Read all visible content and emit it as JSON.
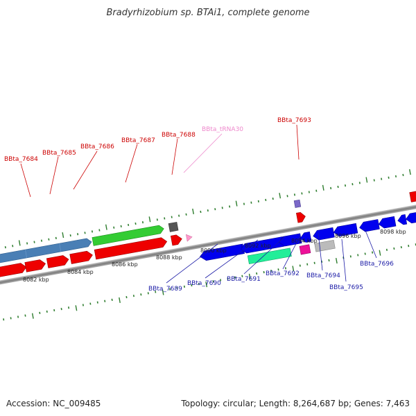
{
  "title": "Bradyrhizobium sp. BTAi1, complete genome",
  "footer": {
    "accession": "Accession: NC_009485",
    "summary": "Topology: circular; Length: 8,264,687 bp; Genes: 7,463"
  },
  "colors": {
    "backbone": "#8a8a8a",
    "tick": "#2e7d2e",
    "forward_label": "#cc0000",
    "reverse_label": "#1a1aa6",
    "trna_label": "#ee88cc"
  },
  "scale_labels": [
    {
      "text": "8082 kbp",
      "kbp": 8082
    },
    {
      "text": "8084 kbp",
      "kbp": 8084
    },
    {
      "text": "8086 kbp",
      "kbp": 8086
    },
    {
      "text": "8088 kbp",
      "kbp": 8088
    },
    {
      "text": "8090 kbp",
      "kbp": 8090
    },
    {
      "text": "8092 kbp",
      "kbp": 8092
    },
    {
      "text": "8094 kbp",
      "kbp": 8094
    },
    {
      "text": "8096 kbp",
      "kbp": 8096
    },
    {
      "text": "8098 kbp",
      "kbp": 8098
    }
  ],
  "gene_labels": [
    {
      "id": "BBta_7684",
      "strand": "forward"
    },
    {
      "id": "BBta_7685",
      "strand": "forward"
    },
    {
      "id": "BBta_7686",
      "strand": "forward"
    },
    {
      "id": "BBta_7687",
      "strand": "forward"
    },
    {
      "id": "BBta_7688",
      "strand": "forward"
    },
    {
      "id": "BBta_tRNA30",
      "strand": "trna"
    },
    {
      "id": "BBta_7693",
      "strand": "forward"
    },
    {
      "id": "BBta_7689",
      "strand": "reverse"
    },
    {
      "id": "BBta_7690",
      "strand": "reverse"
    },
    {
      "id": "BBta_7691",
      "strand": "reverse"
    },
    {
      "id": "BBta_7692",
      "strand": "reverse"
    },
    {
      "id": "BBta_7694",
      "strand": "reverse"
    },
    {
      "id": "BBta_7695",
      "strand": "reverse"
    },
    {
      "id": "BBta_7696",
      "strand": "reverse"
    }
  ]
}
